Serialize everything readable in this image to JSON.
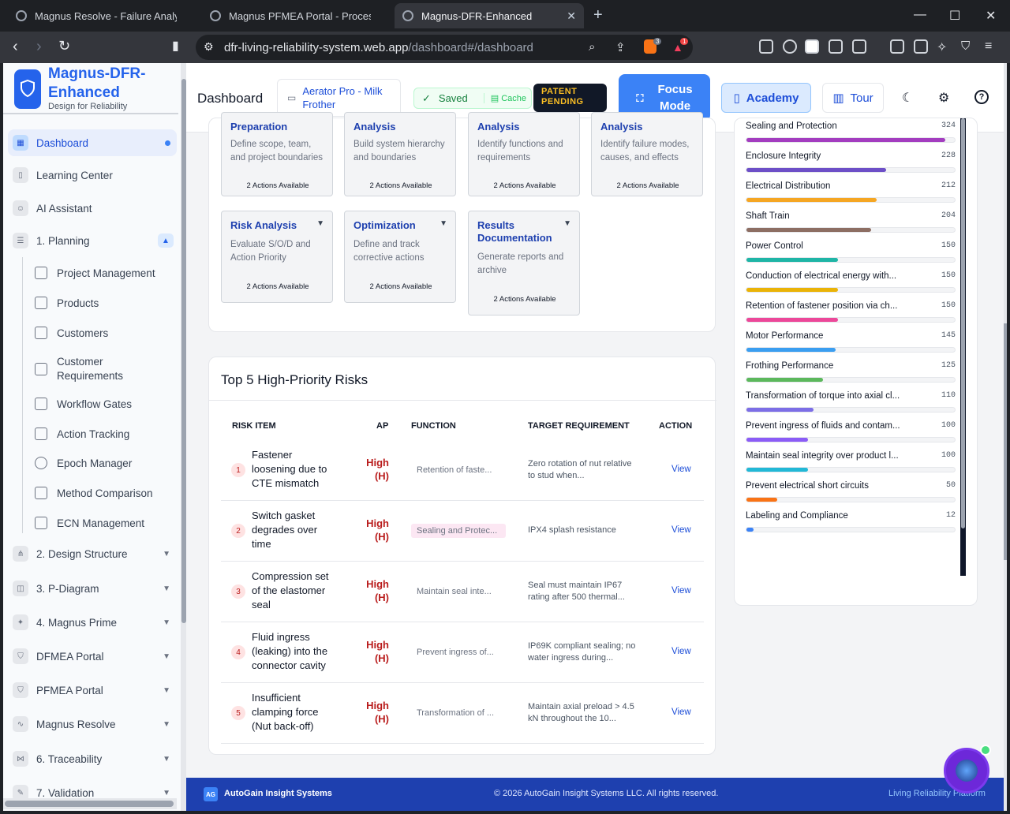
{
  "browser": {
    "tabs": [
      {
        "label": "Magnus Resolve - Failure Analysis",
        "active": false
      },
      {
        "label": "Magnus PFMEA Portal - Process Failu",
        "active": false
      },
      {
        "label": "Magnus-DFR-Enhanced",
        "active": true
      }
    ],
    "url_host": "dfr-living-reliability-system.web.app",
    "url_path": "/dashboard#/dashboard",
    "shield_badge": "3",
    "alert_badge": "1"
  },
  "sidebar": {
    "brand": "Magnus-DFR-Enhanced",
    "tagline": "Design for Reliability",
    "items": [
      {
        "label": "Dashboard",
        "icon": "grid-icon",
        "active": true
      },
      {
        "label": "Learning Center",
        "icon": "book-icon"
      },
      {
        "label": "AI Assistant",
        "icon": "bot-icon"
      },
      {
        "label": "1. Planning",
        "icon": "list-icon",
        "expanded": true
      },
      {
        "label": "2. Design Structure",
        "icon": "tree-icon"
      },
      {
        "label": "3. P-Diagram",
        "icon": "diagram-icon"
      },
      {
        "label": "4. Magnus Prime",
        "icon": "sparkle-icon"
      },
      {
        "label": "DFMEA Portal",
        "icon": "shield-icon"
      },
      {
        "label": "PFMEA Portal",
        "icon": "shield-icon"
      },
      {
        "label": "Magnus Resolve",
        "icon": "pulse-icon"
      },
      {
        "label": "6. Traceability",
        "icon": "share-icon"
      },
      {
        "label": "7. Validation",
        "icon": "pencil-icon"
      }
    ],
    "planning_sub": [
      {
        "label": "Project Management",
        "icon": "tree-icon"
      },
      {
        "label": "Products",
        "icon": "box-icon"
      },
      {
        "label": "Customers",
        "icon": "building-icon"
      },
      {
        "label": "Customer Requirements",
        "icon": "list-icon"
      },
      {
        "label": "Workflow Gates",
        "icon": "shield-icon"
      },
      {
        "label": "Action Tracking",
        "icon": "pulse-icon"
      },
      {
        "label": "Epoch Manager",
        "icon": "timer-icon"
      },
      {
        "label": "Method Comparison",
        "icon": "document-icon"
      },
      {
        "label": "ECN Management",
        "icon": "edit-doc-icon"
      }
    ]
  },
  "header": {
    "title": "Dashboard",
    "project": "Aerator Pro - Milk Frother",
    "saved": "Saved",
    "cache": "Cache",
    "patent_line1": "PATENT",
    "patent_line2": "PENDING",
    "focus_line1": "Focus",
    "focus_line2": "Mode",
    "academy": "Academy",
    "tour": "Tour"
  },
  "phases": [
    {
      "title": "Preparation",
      "desc": "Define scope, team, and project boundaries",
      "actions": "2 Actions Available"
    },
    {
      "title": "Analysis",
      "desc": "Build system hierarchy and boundaries",
      "actions": "2 Actions Available"
    },
    {
      "title": "Analysis",
      "desc": "Identify functions and requirements",
      "actions": "2 Actions Available"
    },
    {
      "title": "Analysis",
      "desc": "Identify failure modes, causes, and effects",
      "actions": "2 Actions Available"
    },
    {
      "title": "Risk Analysis",
      "desc": "Evaluate S/O/D and Action Priority",
      "actions": "2 Actions Available"
    },
    {
      "title": "Optimization",
      "desc": "Define and track corrective actions",
      "actions": "2 Actions Available"
    },
    {
      "title": "Results Documentation",
      "desc": "Generate reports and archive",
      "actions": "2 Actions Available"
    }
  ],
  "risks": {
    "title": "Top 5 High-Priority Risks",
    "columns": {
      "item": "RISK ITEM",
      "ap": "AP",
      "function": "FUNCTION",
      "target": "TARGET REQUIREMENT",
      "action": "ACTION"
    },
    "rows": [
      {
        "n": "1",
        "item": "Fastener loosening due to CTE mismatch",
        "ap": "High (H)",
        "function": "Retention of faste...",
        "target": "Zero rotation of nut relative to stud when...",
        "action": "View",
        "highlight": false
      },
      {
        "n": "2",
        "item": "Switch gasket degrades over time",
        "ap": "High (H)",
        "function": "Sealing and Protec...",
        "target": "IPX4 splash resistance",
        "action": "View",
        "highlight": true
      },
      {
        "n": "3",
        "item": "Compression set of the elastomer seal",
        "ap": "High (H)",
        "function": "Maintain seal inte...",
        "target": "Seal must maintain IP67 rating after 500 thermal...",
        "action": "View",
        "highlight": false
      },
      {
        "n": "4",
        "item": "Fluid ingress (leaking) into the connector cavity",
        "ap": "High (H)",
        "function": "Prevent ingress of...",
        "target": "IP69K compliant sealing; no water ingress during...",
        "action": "View",
        "highlight": false
      },
      {
        "n": "5",
        "item": "Insufficient clamping force (Nut back-off)",
        "ap": "High (H)",
        "function": "Transformation of ...",
        "target": "Maintain axial preload > 4.5 kN throughout the 10...",
        "action": "View",
        "highlight": false
      }
    ]
  },
  "chart_data": {
    "type": "bar",
    "orientation": "horizontal",
    "categories": [
      "Sealing and Protection",
      "Enclosure Integrity",
      "Electrical Distribution",
      "Shaft Train",
      "Power Control",
      "Conduction of electrical energy with...",
      "Retention of fastener position via ch...",
      "Motor Performance",
      "Frothing Performance",
      "Transformation of torque into axial cl...",
      "Prevent ingress of fluids and contam...",
      "Maintain seal integrity over product l...",
      "Prevent electrical short circuits",
      "Labeling and Compliance"
    ],
    "values": [
      324,
      228,
      212,
      204,
      150,
      150,
      150,
      145,
      125,
      110,
      100,
      100,
      50,
      12
    ],
    "colors": [
      "#a33dbf",
      "#6d4fc7",
      "#f5a623",
      "#8d6e63",
      "#1fb5a6",
      "#eab308",
      "#ec4899",
      "#3b9ef0",
      "#5cb85c",
      "#7c6ee6",
      "#8b5cf6",
      "#22b8d6",
      "#f97316",
      "#3b82f6"
    ],
    "xlim": [
      0,
      340
    ]
  },
  "footer": {
    "logo": "AG",
    "company": "AutoGain Insight Systems",
    "copyright": "© 2026 AutoGain Insight Systems LLC. All rights reserved.",
    "right": "Living Reliability Platform"
  }
}
